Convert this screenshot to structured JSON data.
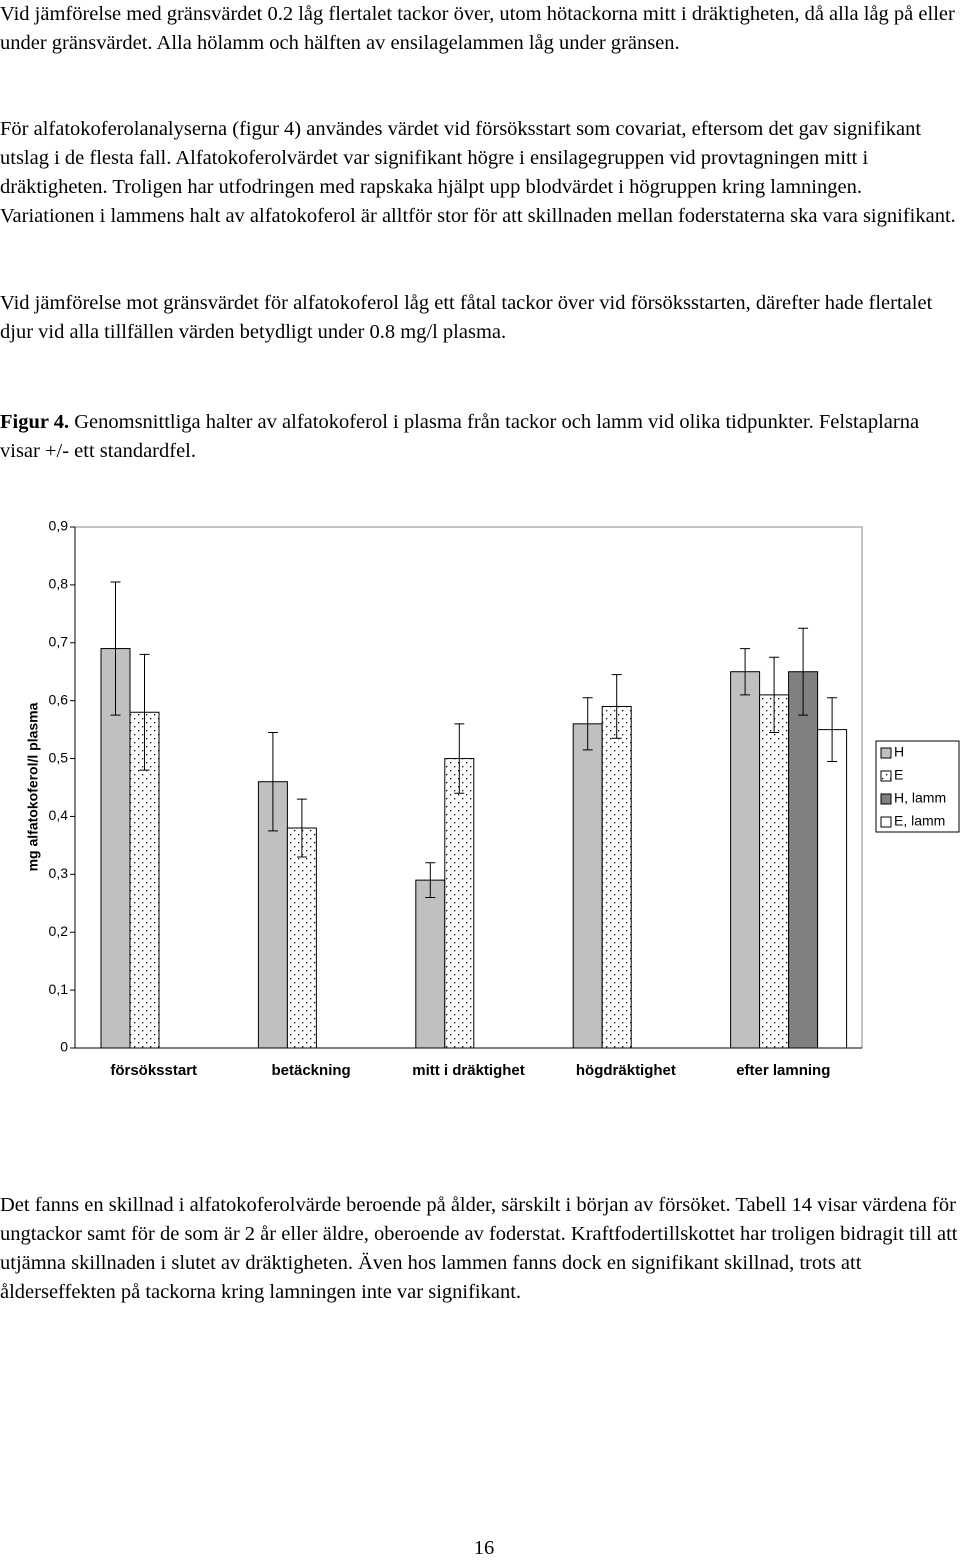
{
  "paragraphs": [
    "Vid jämförelse med gränsvärdet 0.2 låg flertalet tackor över, utom hötackorna mitt i dräktigheten, då alla låg på eller under gränsvärdet. Alla hölamm och hälften av ensilagelammen låg under gränsen.",
    "För alfatokoferolanalyserna (figur 4) användes värdet vid försöksstart som covariat, eftersom det gav signifikant utslag i de flesta fall. Alfatokoferolvärdet var signifikant högre i ensilagegruppen vid provtagningen mitt i dräktigheten. Troligen har utfodringen med rapskaka hjälpt upp blodvärdet i högruppen kring lamningen. Variationen i lammens halt av alfatokoferol är alltför stor för att skillnaden mellan foderstaterna ska vara signifikant.",
    "Vid jämförelse mot gränsvärdet för alfatokoferol låg ett fåtal tackor över vid försöksstarten, därefter hade flertalet djur vid alla tillfällen värden betydligt under 0.8 mg/l plasma."
  ],
  "figure_caption": {
    "label": "Figur 4.",
    "text": "Genomsnittliga halter av alfatokoferol i plasma från tackor och lamm vid olika tidpunkter. Felstaplarna visar +/- ett standardfel."
  },
  "chart_data": {
    "type": "bar",
    "y_label": "mg alfatokoferol/l plasma",
    "categories": [
      "försöksstart",
      "betäckning",
      "mitt i dräktighet",
      "högdräktighet",
      "efter lamning"
    ],
    "series": [
      {
        "name": "H",
        "color": "#c0c0c0",
        "pattern": "solid",
        "values": [
          0.69,
          0.46,
          0.29,
          0.56,
          0.65
        ],
        "errors": [
          0.115,
          0.085,
          0.03,
          0.045,
          0.04
        ]
      },
      {
        "name": "E",
        "color": "#ffffff",
        "pattern": "dots",
        "values": [
          0.58,
          0.38,
          0.5,
          0.59,
          0.61
        ],
        "errors": [
          0.1,
          0.05,
          0.06,
          0.055,
          0.065
        ]
      },
      {
        "name": "H, lamm",
        "color": "#808080",
        "pattern": "solid",
        "values": [
          null,
          null,
          null,
          null,
          0.65
        ],
        "errors": [
          null,
          null,
          null,
          null,
          0.075
        ]
      },
      {
        "name": "E, lamm",
        "color": "#ffffff",
        "pattern": "solid",
        "values": [
          null,
          null,
          null,
          null,
          0.55
        ],
        "errors": [
          null,
          null,
          null,
          null,
          0.055
        ]
      }
    ],
    "ylim": [
      0,
      0.9
    ],
    "yticks": [
      0,
      {
        "value": 0.1,
        "label": "0,1"
      },
      {
        "value": 0.2,
        "label": "0,2"
      },
      {
        "value": 0.3,
        "label": "0,3"
      },
      {
        "value": 0.4,
        "label": "0,4"
      },
      {
        "value": 0.5,
        "label": "0,5"
      },
      {
        "value": 0.6,
        "label": "0,6"
      },
      {
        "value": 0.7,
        "label": "0,7"
      },
      {
        "value": 0.8,
        "label": "0,8"
      },
      {
        "value": 0.9,
        "label": "0,9"
      }
    ],
    "legend": "right"
  },
  "closing_paragraph": "Det fanns en skillnad i alfatokoferolvärde beroende på ålder, särskilt i början av försöket. Tabell 14 visar värdena för ungtackor samt för de som är 2 år eller äldre, oberoende av foderstat. Kraftfodertillskottet har troligen bidragit till att utjämna skillnaden i slutet av dräktigheten. Även hos lammen fanns dock en signifikant skillnad, trots att ålderseffekten på tackorna kring lamningen inte var signifikant.",
  "page_number": "16"
}
